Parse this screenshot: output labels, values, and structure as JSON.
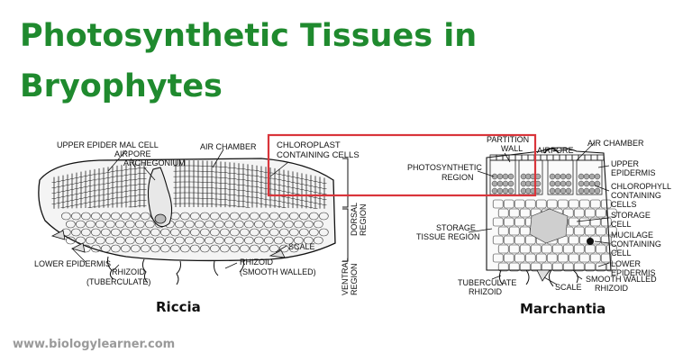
{
  "title": {
    "line1": "Photosynthetic Tissues in",
    "line2": "Bryophytes"
  },
  "colors": {
    "title": "#1f8a2e",
    "highlight_box": "#d9353b",
    "website": "#9a9a9a"
  },
  "riccia": {
    "caption": "Riccia",
    "labels": {
      "upper_epidermal_cell": "UPPER EPIDER MAL CELL",
      "airpore": "AIRPORE",
      "archegonium": "ARCHEGONIUM",
      "air_chamber": "AIR CHAMBER",
      "chloroplast_line1": "CHLOROPLAST",
      "chloroplast_line2": "CONTAINING CELLS",
      "dorsal_region_line1": "DORSAL",
      "dorsal_region_line2": "REGION",
      "ventral_region_line1": "VENTRAL",
      "ventral_region_line2": "REGION",
      "scale": "SCALE",
      "lower_epidermis": "LOWER EPIDERMIS",
      "rhizoid_tuberculate_line1": "RHIZOID",
      "rhizoid_tuberculate_line2": "(TUBERCULATE)",
      "rhizoid_smooth_line1": "RHIZOID",
      "rhizoid_smooth_line2": "(SMOOTH WALLED)"
    }
  },
  "marchantia": {
    "caption": "Marchantia",
    "labels": {
      "partition_wall_line1": "PARTITION",
      "partition_wall_line2": "WALL",
      "airpore": "AIRPORE",
      "air_chamber": "AIR CHAMBER",
      "photosynthetic_line1": "PHOTOSYNTHETIC",
      "photosynthetic_line2": "REGION",
      "upper_epidermis_line1": "UPPER",
      "upper_epidermis_line2": "EPIDERMIS",
      "chlorophyll_line1": "CHLOROPHYLL",
      "chlorophyll_line2": "CONTAINING",
      "chlorophyll_line3": "CELLS",
      "storage_cell_line1": "STORAGE",
      "storage_cell_line2": "CELL",
      "mucilage_line1": "MUCILAGE",
      "mucilage_line2": "CONTAINING",
      "mucilage_line3": "CELL",
      "storage_tissue_line1": "STORAGE",
      "storage_tissue_line2": "TISSUE REGION",
      "lower_epidermis_line1": "LOWER",
      "lower_epidermis_line2": "EPIDERMIS",
      "tuberculate_rhizoid_line1": "TUBERCULATE",
      "tuberculate_rhizoid_line2": "RHIZOID",
      "scale": "SCALE",
      "smooth_walled_rhizoid_line1": "SMOOTH WALLED",
      "smooth_walled_rhizoid_line2": "RHIZOID"
    }
  },
  "website": "www.biologylearner.com"
}
